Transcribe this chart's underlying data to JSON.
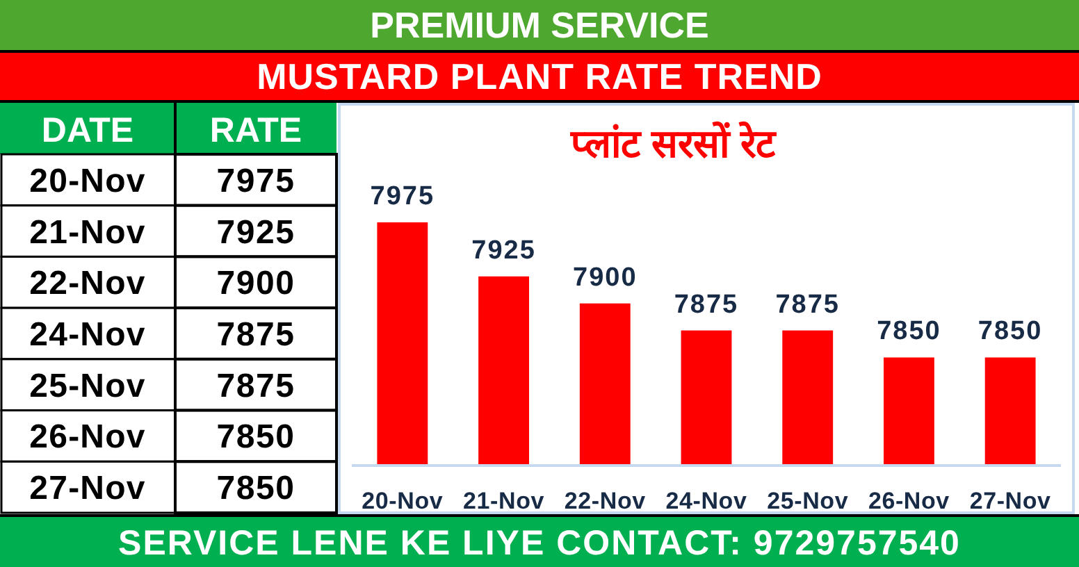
{
  "chart_data": [
    {
      "type": "other",
      "title": "MUSTARD PLANT RATE TREND",
      "annotations": [
        "PREMIUM SERVICE",
        "DATE",
        "RATE"
      ],
      "categories": [
        "20-Nov",
        "21-Nov",
        "22-Nov",
        "24-Nov",
        "25-Nov",
        "26-Nov",
        "27-Nov"
      ],
      "values": [
        7975,
        7925,
        7900,
        7875,
        7875,
        7850,
        7850
      ],
      "data_labels": true
    },
    {
      "type": "bar",
      "title": "प्लांट सरसों रेट",
      "categories": [
        "20-Nov",
        "21-Nov",
        "22-Nov",
        "24-Nov",
        "25-Nov",
        "26-Nov",
        "27-Nov"
      ],
      "values": [
        7975,
        7925,
        7900,
        7875,
        7875,
        7850,
        7850
      ],
      "color": "#ff0000",
      "ylim": [
        7750,
        7975
      ],
      "data_labels": true,
      "tick_labels": "x",
      "annotations": [
        "SERVICE LENE KE LIYE CONTACT: 9729757540"
      ]
    }
  ]
}
